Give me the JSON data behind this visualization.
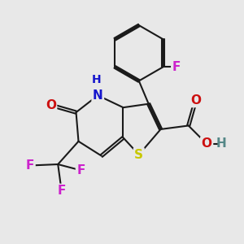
{
  "bg_color": "#e8e8e8",
  "bond_color": "#1a1a1a",
  "bond_width": 1.5,
  "dbo": 0.055,
  "atom_colors": {
    "N": "#1515cc",
    "S": "#c8c800",
    "O": "#cc1010",
    "F": "#cc22cc",
    "H": "#558888"
  },
  "fs": 11,
  "fs2": 10
}
